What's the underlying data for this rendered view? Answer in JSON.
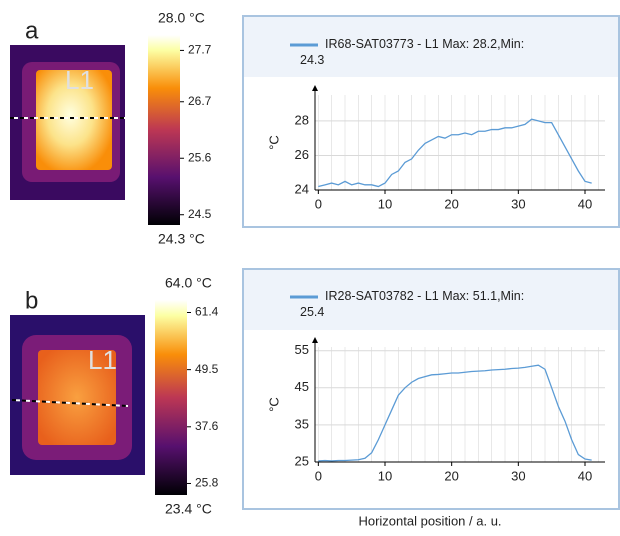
{
  "panels": [
    {
      "label": "a",
      "image_label": "L1",
      "colorbar": {
        "range": [
          24.3,
          28.0
        ],
        "range_labels": [
          "28.0 °C",
          "24.3 °C"
        ],
        "ticks": [
          27.7,
          26.7,
          25.6,
          24.5
        ]
      }
    },
    {
      "label": "b",
      "image_label": "L1",
      "colorbar": {
        "range": [
          23.4,
          64.0
        ],
        "range_labels": [
          "64.0 °C",
          "23.4 °C"
        ],
        "ticks": [
          61.4,
          49.5,
          37.6,
          25.8
        ]
      }
    }
  ],
  "x_label": "Horizontal position / a. u.",
  "chart_data": [
    {
      "type": "line",
      "ylabel": "°C",
      "x": [
        0,
        1,
        2,
        3,
        4,
        5,
        6,
        7,
        8,
        9,
        10,
        11,
        12,
        13,
        14,
        15,
        16,
        17,
        18,
        19,
        20,
        21,
        22,
        23,
        24,
        25,
        26,
        27,
        28,
        29,
        30,
        31,
        32,
        33,
        34,
        35,
        36,
        37,
        38,
        39,
        40,
        41
      ],
      "series": [
        {
          "name": "IR68-SAT03773 - L1 Max: 28.2,Min: 24.3",
          "color": "#5b9bd5",
          "values": [
            24.2,
            24.3,
            24.4,
            24.3,
            24.5,
            24.3,
            24.4,
            24.3,
            24.3,
            24.2,
            24.4,
            24.9,
            25.1,
            25.6,
            25.8,
            26.3,
            26.7,
            26.9,
            27.1,
            27.0,
            27.2,
            27.2,
            27.3,
            27.2,
            27.4,
            27.4,
            27.5,
            27.5,
            27.6,
            27.6,
            27.7,
            27.8,
            28.1,
            28.0,
            27.9,
            27.9,
            27.2,
            26.5,
            25.8,
            25.1,
            24.5,
            24.4
          ]
        }
      ],
      "xlim": [
        -0.5,
        43
      ],
      "xticks": [
        0,
        10,
        20,
        30,
        40
      ],
      "ylim": [
        24,
        29.5
      ],
      "yticks": [
        24,
        26,
        28
      ],
      "grid": true
    },
    {
      "type": "line",
      "ylabel": "°C",
      "x": [
        0,
        1,
        2,
        3,
        4,
        5,
        6,
        7,
        8,
        9,
        10,
        11,
        12,
        13,
        14,
        15,
        16,
        17,
        18,
        19,
        20,
        21,
        22,
        23,
        24,
        25,
        26,
        27,
        28,
        29,
        30,
        31,
        32,
        33,
        34,
        35,
        36,
        37,
        38,
        39,
        40,
        41
      ],
      "series": [
        {
          "name": "IR28-SAT03782 - L1 Max: 51.1,Min: 25.4",
          "color": "#5b9bd5",
          "values": [
            25.3,
            25.4,
            25.3,
            25.4,
            25.4,
            25.5,
            25.6,
            26,
            27.5,
            31,
            35,
            39,
            43,
            45,
            46.5,
            47.5,
            48,
            48.5,
            48.6,
            48.8,
            49,
            49,
            49.2,
            49.4,
            49.5,
            49.6,
            49.8,
            49.9,
            50,
            50.2,
            50.3,
            50.5,
            50.8,
            51.1,
            50,
            45,
            40,
            36,
            31,
            27,
            25.8,
            25.5
          ]
        }
      ],
      "xlim": [
        -0.5,
        43
      ],
      "xticks": [
        0,
        10,
        20,
        30,
        40
      ],
      "ylim": [
        25,
        56
      ],
      "yticks": [
        25,
        35,
        45,
        55
      ],
      "grid": true
    }
  ]
}
